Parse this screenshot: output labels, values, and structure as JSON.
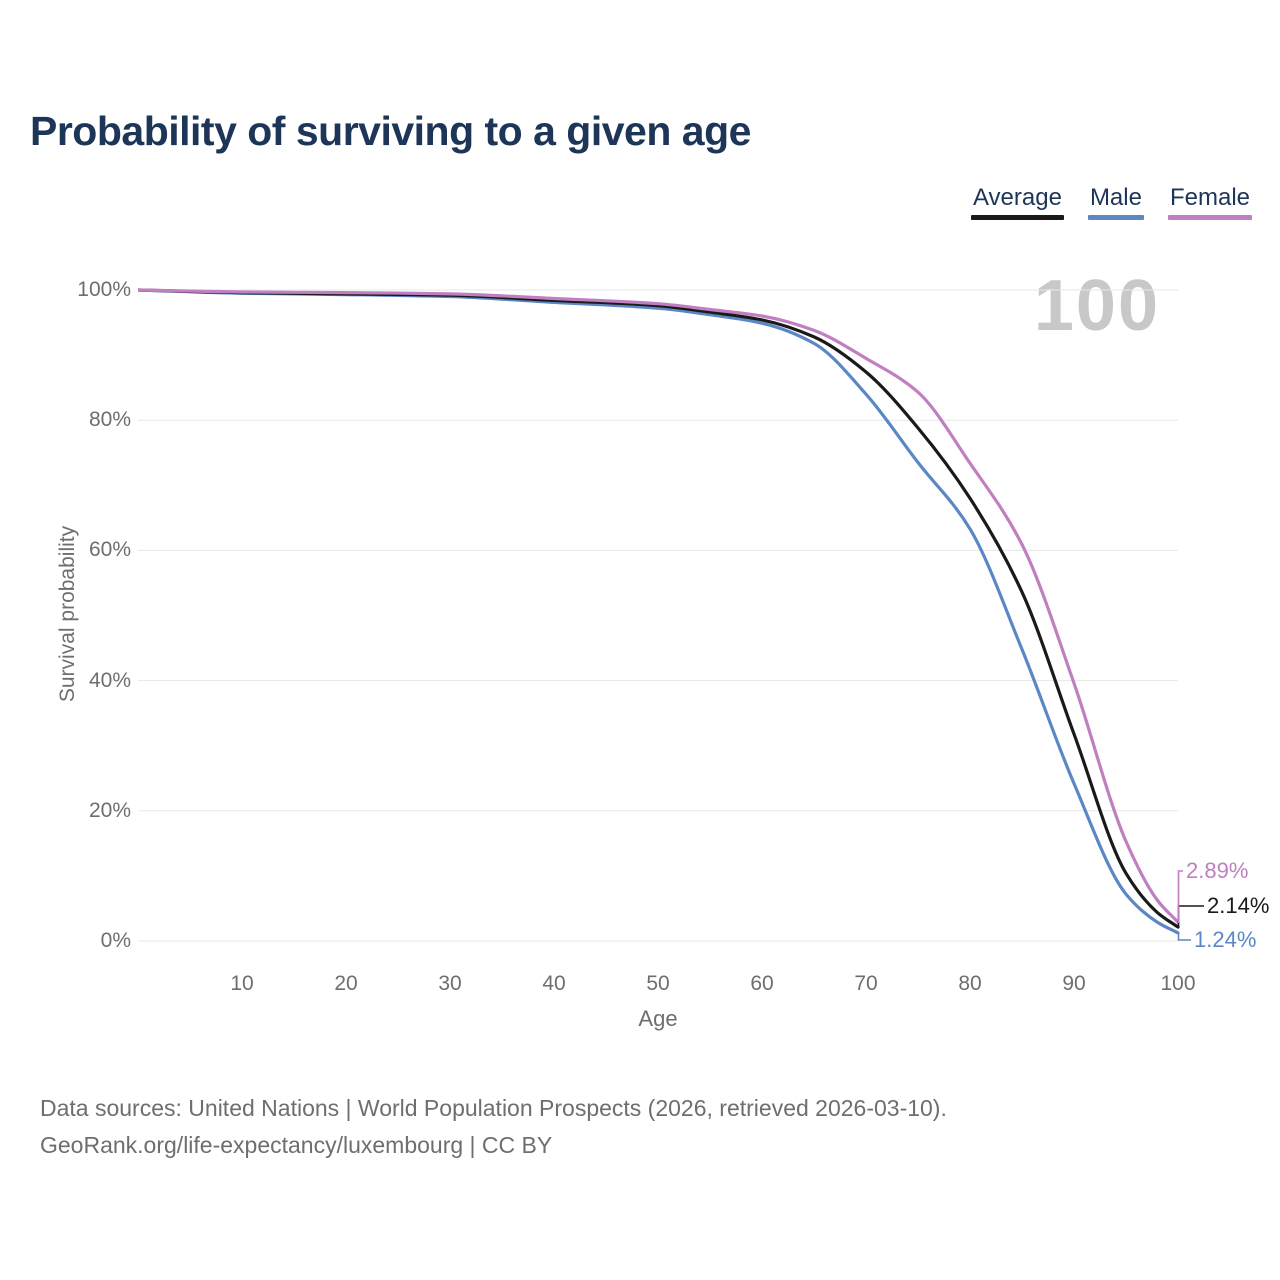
{
  "title": "Probability of surviving to a given age",
  "watermark": "100",
  "legend": {
    "position": "top-right",
    "items": [
      {
        "label": "Average",
        "color": "#1a1a1a"
      },
      {
        "label": "Male",
        "color": "#5b87c5"
      },
      {
        "label": "Female",
        "color": "#c07fc0"
      }
    ]
  },
  "chart_data": {
    "type": "line",
    "title": "Probability of surviving to a given age",
    "xlabel": "Age",
    "ylabel": "Survival probability",
    "xlim": [
      0,
      100
    ],
    "ylim": [
      0,
      100
    ],
    "grid": "horizontal",
    "x": [
      0,
      10,
      20,
      30,
      40,
      50,
      55,
      60,
      65,
      70,
      75,
      80,
      85,
      90,
      95,
      98,
      100
    ],
    "series": [
      {
        "name": "Average",
        "color": "#1a1a1a",
        "values": [
          100,
          99.6,
          99.4,
          99.2,
          98.4,
          97.6,
          96.6,
          95.4,
          92.8,
          87.4,
          78.8,
          68.0,
          53.6,
          31.8,
          10.4,
          4.4,
          2.14
        ],
        "end_label": "2.14%"
      },
      {
        "name": "Male",
        "color": "#5b87c5",
        "values": [
          100,
          99.5,
          99.3,
          99.0,
          98.1,
          97.2,
          96.2,
          94.9,
          91.8,
          84.0,
          73.5,
          63.3,
          44.8,
          24.2,
          7.2,
          2.9,
          1.24
        ],
        "end_label": "1.24%"
      },
      {
        "name": "Female",
        "color": "#c07fc0",
        "values": [
          100,
          99.7,
          99.6,
          99.4,
          98.7,
          97.9,
          97.0,
          96.0,
          93.8,
          89.5,
          84.3,
          73.4,
          60.9,
          39.6,
          15.3,
          6.3,
          2.89
        ],
        "end_label": "2.89%"
      }
    ],
    "xticks": [
      10,
      20,
      30,
      40,
      50,
      60,
      70,
      80,
      90,
      100
    ],
    "yticks": [
      "0%",
      "20%",
      "40%",
      "60%",
      "80%",
      "100%"
    ]
  },
  "footer": {
    "line1": "Data sources: United Nations | World Population Prospects (2026, retrieved 2026-03-10).",
    "line2": "GeoRank.org/life-expectancy/luxembourg | CC BY"
  }
}
